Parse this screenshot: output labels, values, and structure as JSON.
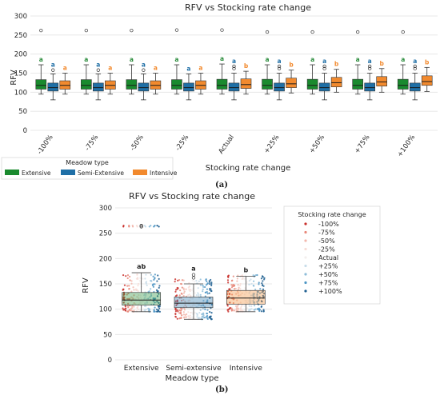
{
  "panel_a_label": "(a)",
  "panel_b_label": "(b)",
  "colors": {
    "extensive": "#1a8a2e",
    "semi_extensive": "#1f6fa6",
    "intensive": "#f28a2e",
    "letter_a": "#2b8c3c",
    "letter_b_semi": "#1f6fa6",
    "letter_b_int": "#f28a2e",
    "grid": "#e3e3e3",
    "median": "#1a1a1a"
  },
  "chart_data": [
    {
      "id": "a",
      "type": "box",
      "title": "RFV vs Stocking rate change",
      "xlabel": "Stocking rate change",
      "ylabel": "RFV",
      "ylim": [
        0,
        300
      ],
      "yticks": [
        0,
        50,
        100,
        150,
        200,
        250,
        300
      ],
      "grid": true,
      "categories": [
        "-100%",
        "-75%",
        "-50%",
        "-25%",
        "Actual",
        "+25%",
        "+50%",
        "+75%",
        "+100%"
      ],
      "legend": {
        "title": "Meadow type",
        "placement": "below-left",
        "entries": [
          "Extensive",
          "Semi-Extensive",
          "Intensive"
        ]
      },
      "series": [
        {
          "name": "Extensive",
          "boxes": [
            {
              "whislo": 95,
              "q1": 108,
              "med": 118,
              "q3": 133,
              "whishi": 172,
              "fliers": [
                262
              ]
            },
            {
              "whislo": 95,
              "q1": 108,
              "med": 118,
              "q3": 133,
              "whishi": 172,
              "fliers": [
                262
              ]
            },
            {
              "whislo": 95,
              "q1": 108,
              "med": 118,
              "q3": 133,
              "whishi": 172,
              "fliers": [
                262
              ]
            },
            {
              "whislo": 95,
              "q1": 108,
              "med": 118,
              "q3": 133,
              "whishi": 172,
              "fliers": [
                263
              ]
            },
            {
              "whislo": 95,
              "q1": 108,
              "med": 118,
              "q3": 134,
              "whishi": 174,
              "fliers": [
                263
              ]
            },
            {
              "whislo": 95,
              "q1": 108,
              "med": 118,
              "q3": 134,
              "whishi": 172,
              "fliers": [
                258
              ]
            },
            {
              "whislo": 95,
              "q1": 108,
              "med": 118,
              "q3": 134,
              "whishi": 172,
              "fliers": [
                258
              ]
            },
            {
              "whislo": 95,
              "q1": 108,
              "med": 118,
              "q3": 134,
              "whishi": 172,
              "fliers": [
                258
              ]
            },
            {
              "whislo": 95,
              "q1": 108,
              "med": 118,
              "q3": 134,
              "whishi": 172,
              "fliers": [
                258
              ]
            }
          ],
          "letters": [
            "a",
            "a",
            "a",
            "a",
            "a",
            "a",
            "a",
            "a",
            "a"
          ]
        },
        {
          "name": "Semi-Extensive",
          "boxes": [
            {
              "whislo": 80,
              "q1": 103,
              "med": 112,
              "q3": 124,
              "whishi": 148,
              "fliers": [
                158
              ]
            },
            {
              "whislo": 80,
              "q1": 103,
              "med": 112,
              "q3": 124,
              "whishi": 148,
              "fliers": [
                158
              ]
            },
            {
              "whislo": 80,
              "q1": 103,
              "med": 112,
              "q3": 124,
              "whishi": 148,
              "fliers": [
                158
              ]
            },
            {
              "whislo": 80,
              "q1": 103,
              "med": 112,
              "q3": 124,
              "whishi": 148,
              "fliers": []
            },
            {
              "whislo": 80,
              "q1": 103,
              "med": 112,
              "q3": 124,
              "whishi": 150,
              "fliers": [
                162,
                168
              ]
            },
            {
              "whislo": 80,
              "q1": 103,
              "med": 112,
              "q3": 124,
              "whishi": 150,
              "fliers": [
                162,
                168
              ]
            },
            {
              "whislo": 80,
              "q1": 103,
              "med": 112,
              "q3": 124,
              "whishi": 150,
              "fliers": [
                162,
                168
              ]
            },
            {
              "whislo": 80,
              "q1": 103,
              "med": 112,
              "q3": 124,
              "whishi": 150,
              "fliers": [
                162,
                168
              ]
            },
            {
              "whislo": 80,
              "q1": 103,
              "med": 112,
              "q3": 124,
              "whishi": 150,
              "fliers": [
                162,
                168
              ]
            }
          ],
          "letters": [
            "a",
            "a",
            "a",
            "a",
            "a",
            "a",
            "a",
            "a",
            "a"
          ]
        },
        {
          "name": "Intensive",
          "boxes": [
            {
              "whislo": 95,
              "q1": 108,
              "med": 118,
              "q3": 130,
              "whishi": 150,
              "fliers": []
            },
            {
              "whislo": 95,
              "q1": 108,
              "med": 118,
              "q3": 130,
              "whishi": 150,
              "fliers": []
            },
            {
              "whislo": 95,
              "q1": 108,
              "med": 118,
              "q3": 130,
              "whishi": 150,
              "fliers": []
            },
            {
              "whislo": 95,
              "q1": 108,
              "med": 118,
              "q3": 130,
              "whishi": 150,
              "fliers": []
            },
            {
              "whislo": 95,
              "q1": 110,
              "med": 120,
              "q3": 135,
              "whishi": 155,
              "fliers": []
            },
            {
              "whislo": 98,
              "q1": 112,
              "med": 122,
              "q3": 137,
              "whishi": 158,
              "fliers": []
            },
            {
              "whislo": 100,
              "q1": 114,
              "med": 125,
              "q3": 139,
              "whishi": 160,
              "fliers": []
            },
            {
              "whislo": 100,
              "q1": 116,
              "med": 127,
              "q3": 141,
              "whishi": 162,
              "fliers": []
            },
            {
              "whislo": 102,
              "q1": 118,
              "med": 128,
              "q3": 143,
              "whishi": 165,
              "fliers": []
            }
          ],
          "letters": [
            "a",
            "a",
            "a",
            "a",
            "b",
            "b",
            "b",
            "b",
            "b"
          ]
        }
      ]
    },
    {
      "id": "b",
      "type": "box",
      "title": "RFV vs Stocking rate change",
      "xlabel": "Meadow type",
      "ylabel": "RFV",
      "ylim": [
        0,
        300
      ],
      "yticks": [
        0,
        50,
        100,
        150,
        200,
        250,
        300
      ],
      "grid": true,
      "categories": [
        "Extensive",
        "Semi-extensive",
        "Intensive"
      ],
      "boxes": [
        {
          "whislo": 95,
          "q1": 108,
          "med": 118,
          "q3": 133,
          "whishi": 172,
          "fliers": [
            263,
            265
          ],
          "letter": "ab"
        },
        {
          "whislo": 80,
          "q1": 103,
          "med": 112,
          "q3": 124,
          "whishi": 150,
          "fliers": [
            162,
            168
          ],
          "letter": "a"
        },
        {
          "whislo": 95,
          "q1": 110,
          "med": 122,
          "q3": 137,
          "whishi": 165,
          "fliers": [],
          "letter": "b"
        }
      ],
      "legend": {
        "title": "Stocking rate change",
        "placement": "right",
        "entries": [
          "-100%",
          "-75%",
          "-50%",
          "-25%",
          "Actual",
          "+25%",
          "+50%",
          "+75%",
          "+100%"
        ],
        "colors": [
          "#c9302c",
          "#e8887a",
          "#f2b8ad",
          "#f7ddd7",
          "#f3efee",
          "#c9ddea",
          "#8ebdd9",
          "#4d95c4",
          "#1f5f91"
        ]
      },
      "strip": {
        "Extensive": {
          "min": 95,
          "max": 172,
          "highs": [
            263,
            265
          ]
        },
        "Semi-extensive": {
          "min": 80,
          "max": 160,
          "highs": []
        },
        "Intensive": {
          "min": 95,
          "max": 168,
          "highs": []
        }
      }
    }
  ]
}
